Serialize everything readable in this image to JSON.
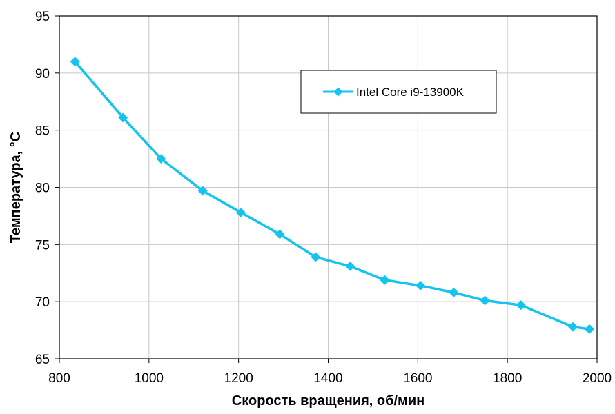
{
  "chart_data": {
    "type": "line",
    "title": "",
    "xlabel": "Скорость вращения, об/мин",
    "ylabel": "Температура, °C",
    "xlim": [
      800,
      2000
    ],
    "ylim": [
      65,
      95
    ],
    "xticks": [
      800,
      1000,
      1200,
      1400,
      1600,
      1800,
      2000
    ],
    "yticks": [
      65,
      70,
      75,
      80,
      85,
      90,
      95
    ],
    "grid": true,
    "legend_position": "top-right",
    "colors": {
      "series": "#14c4ee",
      "grid": "#c8c8c8",
      "axis": "#000000"
    },
    "series": [
      {
        "name": "Intel Core i9-13900K",
        "marker": "diamond",
        "x": [
          835,
          942,
          1027,
          1120,
          1205,
          1292,
          1372,
          1449,
          1526,
          1606,
          1680,
          1750,
          1830,
          1946,
          1983
        ],
        "y": [
          91.0,
          86.1,
          82.5,
          79.7,
          77.8,
          75.9,
          73.9,
          73.1,
          71.9,
          71.4,
          70.8,
          70.1,
          69.7,
          67.8,
          67.6
        ]
      }
    ]
  }
}
